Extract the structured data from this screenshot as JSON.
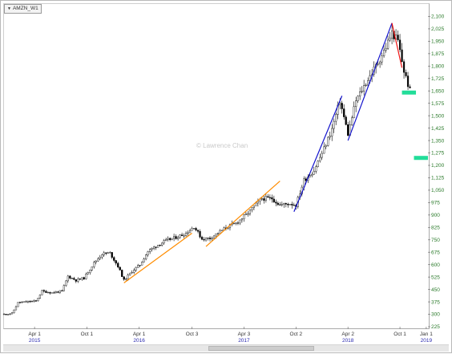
{
  "symbol_label": "AMZN_W1",
  "watermark": "© Lawrence Chan",
  "colors": {
    "candle": "#000000",
    "trend_orange": "#ff8c00",
    "trend_blue": "#1111cc",
    "trend_red": "#ee1111",
    "marker_teal": "#22dd99",
    "y_label": "#2a7a2a",
    "year_label": "#2a2ab0"
  },
  "chart_data": {
    "type": "candlestick",
    "title": "",
    "xlabel": "",
    "ylabel": "",
    "ylim": [
      225,
      2175
    ],
    "x_range": [
      "2014-12-15",
      "2019-01-07"
    ],
    "y_ticks": [
      2100,
      2025,
      1950,
      1875,
      1800,
      1725,
      1650,
      1575,
      1500,
      1425,
      1350,
      1275,
      1200,
      1125,
      1050,
      975,
      900,
      825,
      750,
      675,
      600,
      525,
      450,
      375,
      300,
      225
    ],
    "y_tick_labels": [
      "2,100",
      "2,025",
      "1,950",
      "1,875",
      "1,800",
      "1,725",
      "1,650",
      "1,575",
      "1,500",
      "1,425",
      "1,350",
      "1,275",
      "1,200",
      "1,125",
      "1,050",
      "975",
      "900",
      "825",
      "750",
      "675",
      "600",
      "525",
      "450",
      "375",
      "300",
      "225"
    ],
    "x_ticks": [
      {
        "date": "2015-04-01",
        "label": "Apr 1",
        "year": "2015"
      },
      {
        "date": "2015-10-01",
        "label": "Oct 1",
        "year": ""
      },
      {
        "date": "2016-04-01",
        "label": "Apr 1",
        "year": "2016"
      },
      {
        "date": "2016-10-03",
        "label": "Oct 3",
        "year": ""
      },
      {
        "date": "2017-04-03",
        "label": "Apr 3",
        "year": "2017"
      },
      {
        "date": "2017-10-02",
        "label": "Oct 2",
        "year": ""
      },
      {
        "date": "2018-04-02",
        "label": "Apr 2",
        "year": "2018"
      },
      {
        "date": "2018-10-01",
        "label": "Oct 1",
        "year": ""
      },
      {
        "date": "2019-01-01",
        "label": "Jan 1",
        "year": "2019"
      }
    ],
    "price_path": [
      [
        "2014-12-15",
        300
      ],
      [
        "2015-01-12",
        305
      ],
      [
        "2015-02-02",
        370
      ],
      [
        "2015-03-02",
        375
      ],
      [
        "2015-04-06",
        380
      ],
      [
        "2015-04-27",
        440
      ],
      [
        "2015-06-01",
        430
      ],
      [
        "2015-07-06",
        440
      ],
      [
        "2015-07-27",
        530
      ],
      [
        "2015-08-24",
        505
      ],
      [
        "2015-09-21",
        520
      ],
      [
        "2015-10-26",
        610
      ],
      [
        "2015-11-23",
        665
      ],
      [
        "2015-12-21",
        670
      ],
      [
        "2016-01-18",
        590
      ],
      [
        "2016-02-08",
        505
      ],
      [
        "2016-03-07",
        560
      ],
      [
        "2016-04-04",
        600
      ],
      [
        "2016-05-02",
        680
      ],
      [
        "2016-06-06",
        720
      ],
      [
        "2016-07-11",
        750
      ],
      [
        "2016-08-08",
        765
      ],
      [
        "2016-09-12",
        790
      ],
      [
        "2016-10-10",
        830
      ],
      [
        "2016-11-07",
        755
      ],
      [
        "2016-12-05",
        760
      ],
      [
        "2017-01-09",
        800
      ],
      [
        "2017-02-06",
        830
      ],
      [
        "2017-03-06",
        850
      ],
      [
        "2017-04-10",
        900
      ],
      [
        "2017-05-08",
        950
      ],
      [
        "2017-06-05",
        1000
      ],
      [
        "2017-07-10",
        1000
      ],
      [
        "2017-08-07",
        960
      ],
      [
        "2017-09-11",
        970
      ],
      [
        "2017-10-02",
        960
      ],
      [
        "2017-10-30",
        1110
      ],
      [
        "2017-12-04",
        1170
      ],
      [
        "2018-01-08",
        1300
      ],
      [
        "2018-02-05",
        1420
      ],
      [
        "2018-03-05",
        1590
      ],
      [
        "2018-04-02",
        1390
      ],
      [
        "2018-04-30",
        1590
      ],
      [
        "2018-06-04",
        1700
      ],
      [
        "2018-07-09",
        1800
      ],
      [
        "2018-08-06",
        1890
      ],
      [
        "2018-09-03",
        2000
      ],
      [
        "2018-09-24",
        1950
      ],
      [
        "2018-10-15",
        1770
      ],
      [
        "2018-11-05",
        1650
      ]
    ],
    "trend_lines": [
      {
        "color": "orange",
        "from": [
          "2016-02-08",
          490
        ],
        "to": [
          "2016-10-03",
          790
        ]
      },
      {
        "color": "orange",
        "from": [
          "2016-11-21",
          710
        ],
        "to": [
          "2017-08-07",
          1105
        ]
      },
      {
        "color": "blue",
        "from": [
          "2017-09-25",
          920
        ],
        "to": [
          "2018-03-12",
          1620
        ]
      },
      {
        "color": "blue",
        "from": [
          "2018-04-02",
          1350
        ],
        "to": [
          "2018-09-03",
          2060
        ]
      },
      {
        "color": "red",
        "from": [
          "2018-09-03",
          2060
        ],
        "to": [
          "2018-10-08",
          1790
        ]
      }
    ],
    "markers": [
      {
        "date_from": "2018-10-08",
        "date_to": "2018-11-26",
        "value": 1640
      },
      {
        "date_from": "2018-11-19",
        "date_to": "2019-01-07",
        "value": 1245
      }
    ]
  }
}
